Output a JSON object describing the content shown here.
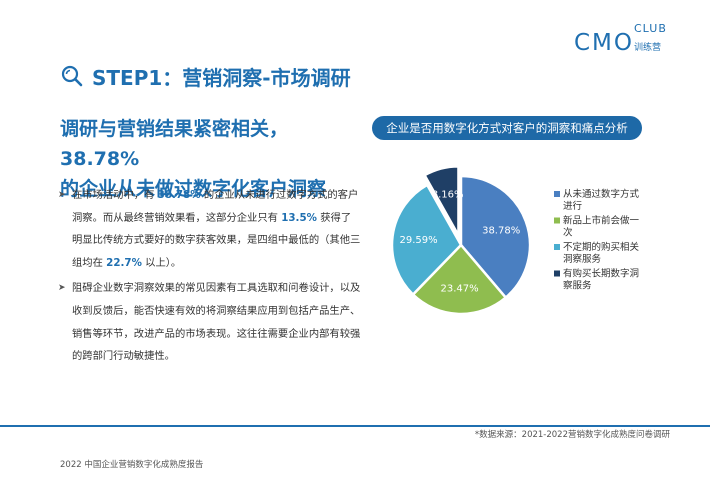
{
  "logo": {
    "main": "CMO",
    "club": "CLUB",
    "sub": "训练营"
  },
  "step_title": "STEP1：营销洞察-市场调研",
  "headline": {
    "line1": "调研与营销结果紧密相关，38.78%",
    "line2": "的企业从未做过数字化客户洞察"
  },
  "bullets": [
    {
      "parts": [
        {
          "text": "在市场活动中，有 ",
          "hl": false
        },
        {
          "text": "38.78%",
          "hl": true
        },
        {
          "text": " 的企业从未进行过数字方式的客户洞察。而从最终营销效果看，这部分企业只有 ",
          "hl": false
        },
        {
          "text": "13.5%",
          "hl": true
        },
        {
          "text": " 获得了明显比传统方式要好的数字获客效果，是四组中最低的（其他三组均在 ",
          "hl": false
        },
        {
          "text": "22.7%",
          "hl": true
        },
        {
          "text": " 以上）。",
          "hl": false
        }
      ]
    },
    {
      "parts": [
        {
          "text": "阻碍企业数字洞察效果的常见因素有工具选取和问卷设计，以及收到反馈后，能否快速有效的将洞察结果应用到包括产品生产、销售等环节，改进产品的市场表现。这往往需要企业内部有较强的跨部门行动敏捷性。",
          "hl": false
        }
      ]
    }
  ],
  "chart_title": "企业是否用数字化方式对客户的洞察和痛点分析",
  "chart_data": {
    "type": "pie",
    "title": "企业是否用数字化方式对客户的洞察和痛点分析",
    "slices": [
      {
        "label": "从未通过数字方式进行",
        "value": 38.78,
        "value_label": "38.78%",
        "color": "#4a7fc1",
        "exploded": false
      },
      {
        "label": "新品上市前会做一次",
        "value": 23.47,
        "value_label": "23.47%",
        "color": "#8fbd4f",
        "exploded": false
      },
      {
        "label": "不定期的购买相关洞察服务",
        "value": 29.59,
        "value_label": "29.59%",
        "color": "#4aaed0",
        "exploded": false
      },
      {
        "label": "有购买长期数字洞察服务",
        "value": 8.16,
        "value_label": "8.16%",
        "color": "#1f3f66",
        "exploded": true
      }
    ],
    "legend": {
      "position": "right",
      "entries": [
        {
          "lines": [
            "从未通过数字方式",
            "进行"
          ],
          "color": "#4a7fc1"
        },
        {
          "lines": [
            "新品上市前会做一",
            "次"
          ],
          "color": "#8fbd4f"
        },
        {
          "lines": [
            "不定期的购买相关",
            "洞察服务"
          ],
          "color": "#4aaed0"
        },
        {
          "lines": [
            "有购买长期数字洞",
            "察服务"
          ],
          "color": "#1f3f66"
        }
      ]
    }
  },
  "source": "*数据来源：2021-2022营销数字化成熟度问卷调研",
  "footer": "2022 中国企业营销数字化成熟度报告",
  "colors": {
    "brand": "#1f6fb0",
    "title_bar": "#1e69a7"
  }
}
